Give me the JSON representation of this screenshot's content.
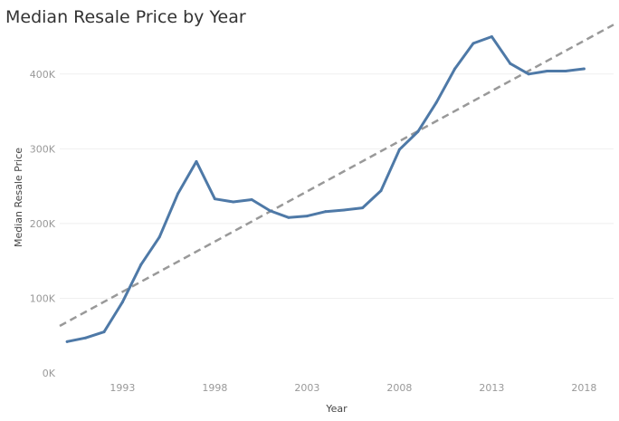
{
  "chart_data": {
    "type": "line",
    "title": "Median Resale Price by Year",
    "xlabel": "Year",
    "ylabel": "Median Resale Price",
    "x_ticks": [
      1993,
      1998,
      2003,
      2008,
      2013,
      2018
    ],
    "y_ticks": [
      0,
      100000,
      200000,
      300000,
      400000
    ],
    "y_tick_labels": [
      "0K",
      "100K",
      "200K",
      "300K",
      "400K"
    ],
    "xlim": [
      1989.6,
      2019.6
    ],
    "ylim": [
      0,
      470000
    ],
    "grid": "horizontal",
    "series": [
      {
        "color": "#4e79a7",
        "x": [
          1990,
          1991,
          1992,
          1993,
          1994,
          1995,
          1996,
          1997,
          1998,
          1999,
          2000,
          2001,
          2002,
          2003,
          2004,
          2005,
          2006,
          2007,
          2008,
          2009,
          2010,
          2011,
          2012,
          2013,
          2014,
          2015,
          2016,
          2017,
          2018
        ],
        "values": [
          42000,
          47000,
          55000,
          95000,
          145000,
          182000,
          240000,
          283000,
          233000,
          229000,
          232000,
          217000,
          208000,
          210000,
          216000,
          218000,
          221000,
          244000,
          299000,
          323000,
          362000,
          407000,
          441000,
          450000,
          414000,
          400000,
          404000,
          404000,
          407000
        ]
      }
    ],
    "trend_line": {
      "style": "dashed",
      "color": "#999999",
      "x": [
        1989.6,
        2019.6
      ],
      "values": [
        63000,
        466000
      ]
    }
  }
}
